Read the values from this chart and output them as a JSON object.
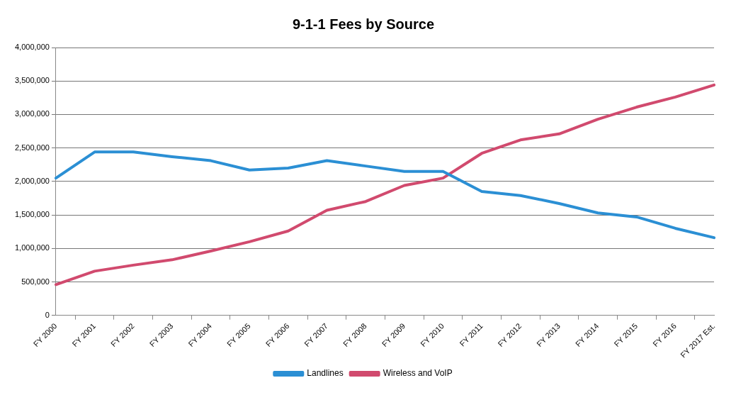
{
  "chart_data": {
    "type": "line",
    "title": "9-1-1 Fees by Source",
    "categories": [
      "FY 2000",
      "FY 2001",
      "FY 2002",
      "FY 2003",
      "FY 2004",
      "FY 2005",
      "FY 2006",
      "FY 2007",
      "FY 2008",
      "FY 2009",
      "FY 2010",
      "FY 2011",
      "FY 2012",
      "FY 2013",
      "FY 2014",
      "FY 2015",
      "FY 2016",
      "FY 2017 Est."
    ],
    "series": [
      {
        "name": "Landlines",
        "color": "#2b8fd4",
        "values": [
          2050000,
          2440000,
          2440000,
          2370000,
          2310000,
          2170000,
          2200000,
          2310000,
          2230000,
          2150000,
          2150000,
          1850000,
          1790000,
          1670000,
          1530000,
          1470000,
          1300000,
          1160000
        ]
      },
      {
        "name": "Wireless and VoIP",
        "color": "#d14a6e",
        "values": [
          460000,
          660000,
          750000,
          830000,
          960000,
          1100000,
          1260000,
          1570000,
          1700000,
          1940000,
          2050000,
          2420000,
          2620000,
          2710000,
          2930000,
          3110000,
          3260000,
          3440000
        ]
      }
    ],
    "ylim": [
      0,
      4000000
    ],
    "yticks": [
      0,
      {
        "value": 500000,
        "label": "500,000"
      },
      {
        "value": 1000000,
        "label": "1,000,000"
      },
      {
        "value": 1500000,
        "label": "1,500,000"
      },
      {
        "value": 2000000,
        "label": "2,000,000"
      },
      {
        "value": 2500000,
        "label": "2,500,000"
      },
      {
        "value": 3000000,
        "label": "3,000,000"
      },
      {
        "value": 3500000,
        "label": "3,500,000"
      },
      {
        "value": 4000000,
        "label": "4,000,000"
      }
    ],
    "grid": "y",
    "legend": "bottom",
    "marker": "none",
    "line_style": "solid"
  }
}
